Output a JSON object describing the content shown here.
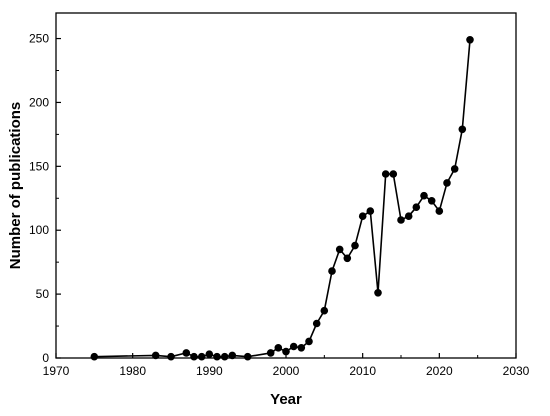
{
  "chart_data": {
    "type": "line",
    "title": "",
    "xlabel": "Year",
    "ylabel": "Number of publications",
    "xlim": [
      1970,
      2030
    ],
    "ylim": [
      0,
      270
    ],
    "xticks": [
      1970,
      1980,
      1990,
      2000,
      2010,
      2020,
      2030
    ],
    "yticks": [
      0,
      50,
      100,
      150,
      200,
      250
    ],
    "grid": false,
    "legend": "none",
    "series": [
      {
        "color": "#000000",
        "marker": "circle",
        "x": [
          1975,
          1983,
          1985,
          1987,
          1988,
          1989,
          1990,
          1991,
          1992,
          1993,
          1995,
          1998,
          1999,
          2000,
          2001,
          2002,
          2003,
          2004,
          2005,
          2006,
          2007,
          2008,
          2009,
          2010,
          2011,
          2012,
          2013,
          2014,
          2015,
          2016,
          2017,
          2018,
          2019,
          2020,
          2021,
          2022,
          2023,
          2024
        ],
        "y": [
          1,
          2,
          1,
          4,
          1,
          1,
          3,
          1,
          1,
          2,
          1,
          4,
          8,
          5,
          9,
          8,
          13,
          27,
          37,
          68,
          85,
          78,
          88,
          111,
          115,
          51,
          144,
          144,
          108,
          111,
          118,
          127,
          123,
          115,
          137,
          148,
          179,
          249
        ]
      }
    ]
  }
}
